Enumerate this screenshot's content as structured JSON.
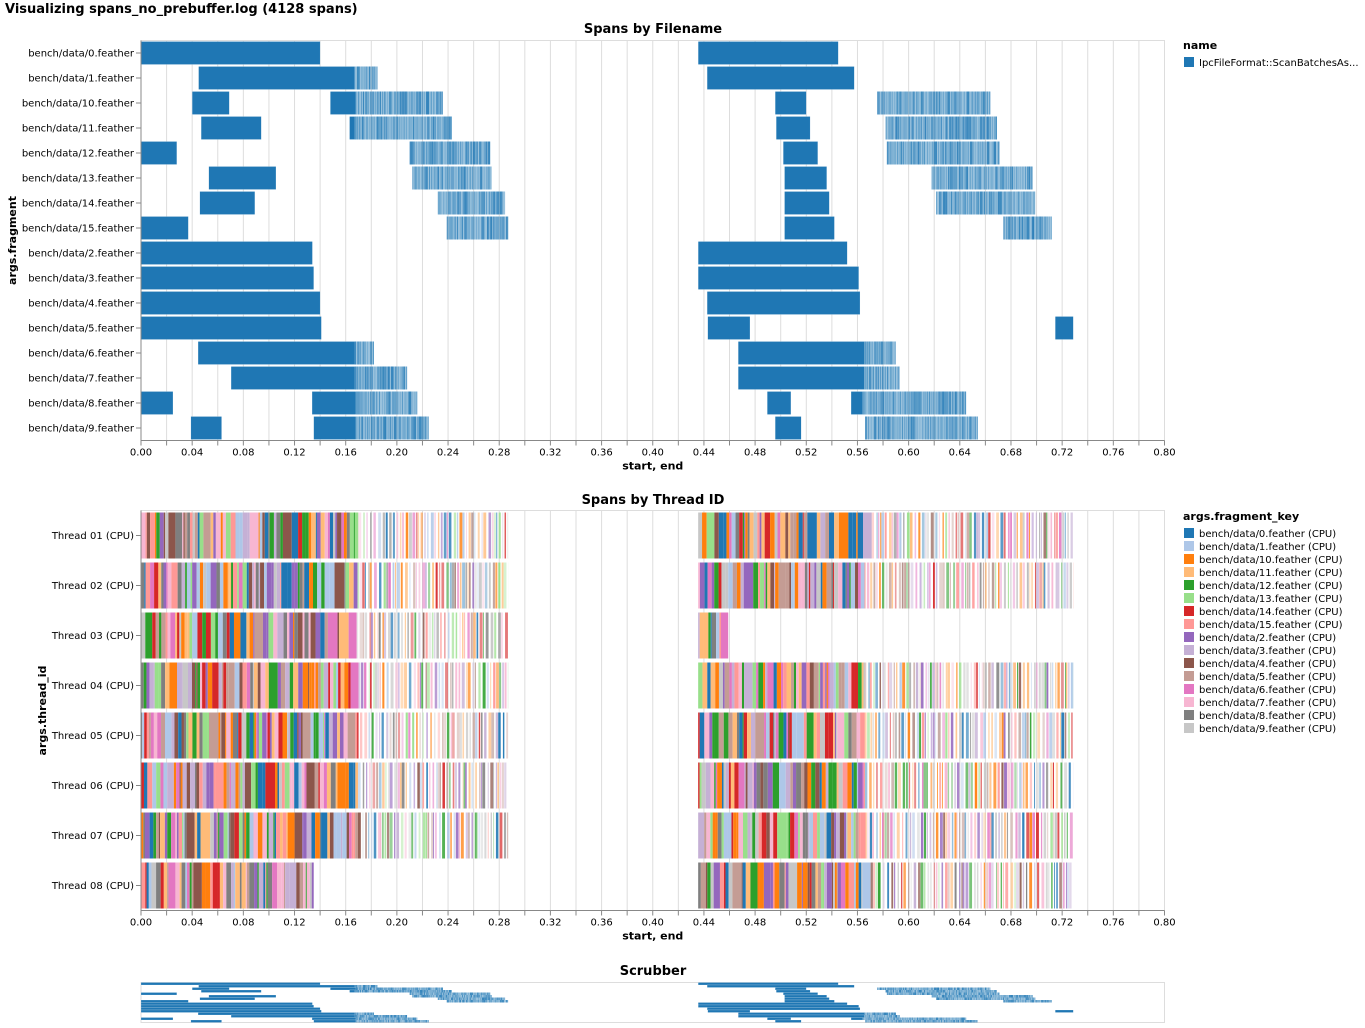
{
  "page": {
    "title": "Visualizing spans_no_prebuffer.log (4128 spans)"
  },
  "chart_data": [
    {
      "type": "gantt",
      "title": "Spans by Filename",
      "xlabel": "start, end",
      "ylabel": "args.fragment",
      "xlim": [
        0,
        0.8
      ],
      "xticks": [
        "0.00",
        "0.04",
        "0.08",
        "0.12",
        "0.16",
        "0.20",
        "0.24",
        "0.28",
        "0.32",
        "0.36",
        "0.40",
        "0.44",
        "0.48",
        "0.52",
        "0.56",
        "0.60",
        "0.64",
        "0.68",
        "0.72",
        "0.76",
        "0.80"
      ],
      "grid": true,
      "legend": {
        "title": "name",
        "position": "right",
        "entries": [
          {
            "label": "IpcFileFormat::ScanBatchesAs...",
            "color": "#1f77b4"
          }
        ]
      },
      "rows": [
        {
          "label": "bench/data/0.feather",
          "segments": [
            [
              0,
              0.14,
              "solid"
            ],
            [
              0.4355,
              0.545,
              "solid"
            ]
          ]
        },
        {
          "label": "bench/data/1.feather",
          "segments": [
            [
              0.045,
              0.167,
              "solid"
            ],
            [
              0.167,
              0.185,
              "stripe"
            ],
            [
              0.4425,
              0.5575,
              "solid"
            ]
          ]
        },
        {
          "label": "bench/data/10.feather",
          "segments": [
            [
              0.04,
              0.069,
              "solid"
            ],
            [
              0.148,
              0.168,
              "solid"
            ],
            [
              0.168,
              0.236,
              "stripe"
            ],
            [
              0.4957,
              0.52,
              "solid"
            ],
            [
              0.5755,
              0.664,
              "stripe"
            ]
          ]
        },
        {
          "label": "bench/data/11.feather",
          "segments": [
            [
              0.047,
              0.094,
              "solid"
            ],
            [
              0.163,
              0.167,
              "solid"
            ],
            [
              0.167,
              0.243,
              "stripe"
            ],
            [
              0.4965,
              0.523,
              "solid"
            ],
            [
              0.582,
              0.669,
              "stripe"
            ]
          ]
        },
        {
          "label": "bench/data/12.feather",
          "segments": [
            [
              0,
              0.028,
              "solid"
            ],
            [
              0.21,
              0.273,
              "stripe"
            ],
            [
              0.502,
              0.529,
              "solid"
            ],
            [
              0.583,
              0.671,
              "stripe"
            ]
          ]
        },
        {
          "label": "bench/data/13.feather",
          "segments": [
            [
              0.053,
              0.1055,
              "solid"
            ],
            [
              0.212,
              0.274,
              "stripe"
            ],
            [
              0.503,
              0.536,
              "solid"
            ],
            [
              0.618,
              0.697,
              "stripe"
            ]
          ]
        },
        {
          "label": "bench/data/14.feather",
          "segments": [
            [
              0.046,
              0.089,
              "solid"
            ],
            [
              0.232,
              0.2846,
              "stripe"
            ],
            [
              0.503,
              0.538,
              "solid"
            ],
            [
              0.6216,
              0.699,
              "stripe"
            ]
          ]
        },
        {
          "label": "bench/data/15.feather",
          "segments": [
            [
              0,
              0.037,
              "solid"
            ],
            [
              0.239,
              0.287,
              "stripe"
            ],
            [
              0.503,
              0.542,
              "solid"
            ],
            [
              0.674,
              0.712,
              "stripe"
            ]
          ]
        },
        {
          "label": "bench/data/2.feather",
          "segments": [
            [
              0,
              0.134,
              "solid"
            ],
            [
              0.4355,
              0.552,
              "solid"
            ]
          ]
        },
        {
          "label": "bench/data/3.feather",
          "segments": [
            [
              0,
              0.135,
              "solid"
            ],
            [
              0.4355,
              0.561,
              "solid"
            ]
          ]
        },
        {
          "label": "bench/data/4.feather",
          "segments": [
            [
              0,
              0.14,
              "solid"
            ],
            [
              0.4425,
              0.562,
              "solid"
            ]
          ]
        },
        {
          "label": "bench/data/5.feather",
          "segments": [
            [
              0,
              0.141,
              "solid"
            ],
            [
              0.443,
              0.476,
              "solid"
            ],
            [
              0.7146,
              0.7287,
              "solid"
            ]
          ]
        },
        {
          "label": "bench/data/6.feather",
          "segments": [
            [
              0.0446,
              0.167,
              "solid"
            ],
            [
              0.167,
              0.182,
              "stripe"
            ],
            [
              0.4668,
              0.5653,
              "solid"
            ],
            [
              0.5653,
              0.59,
              "stripe"
            ]
          ]
        },
        {
          "label": "bench/data/7.feather",
          "segments": [
            [
              0.0704,
              0.167,
              "solid"
            ],
            [
              0.167,
              0.208,
              "stripe"
            ],
            [
              0.4668,
              0.5653,
              "solid"
            ],
            [
              0.5653,
              0.593,
              "stripe"
            ]
          ]
        },
        {
          "label": "bench/data/8.feather",
          "segments": [
            [
              0,
              0.025,
              "solid"
            ],
            [
              0.1337,
              0.168,
              "solid"
            ],
            [
              0.168,
              0.216,
              "stripe"
            ],
            [
              0.4895,
              0.508,
              "solid"
            ],
            [
              0.555,
              0.564,
              "solid"
            ],
            [
              0.564,
              0.645,
              "stripe"
            ]
          ]
        },
        {
          "label": "bench/data/9.feather",
          "segments": [
            [
              0.039,
              0.063,
              "solid"
            ],
            [
              0.135,
              0.168,
              "solid"
            ],
            [
              0.168,
              0.225,
              "stripe"
            ],
            [
              0.4957,
              0.516,
              "solid"
            ],
            [
              0.566,
              0.654,
              "stripe"
            ]
          ]
        }
      ]
    },
    {
      "type": "gantt",
      "title": "Spans by Thread ID",
      "xlabel": "start, end",
      "ylabel": "args.thread_id",
      "xlim": [
        0,
        0.8
      ],
      "grid": true,
      "legend": {
        "title": "args.fragment_key",
        "position": "right",
        "entries": [
          {
            "label": "bench/data/0.feather (CPU)",
            "color": "#1f77b4"
          },
          {
            "label": "bench/data/1.feather (CPU)",
            "color": "#aec7e8"
          },
          {
            "label": "bench/data/10.feather (CPU)",
            "color": "#ff7f0e"
          },
          {
            "label": "bench/data/11.feather (CPU)",
            "color": "#ffbb78"
          },
          {
            "label": "bench/data/12.feather (CPU)",
            "color": "#2ca02c"
          },
          {
            "label": "bench/data/13.feather (CPU)",
            "color": "#98df8a"
          },
          {
            "label": "bench/data/14.feather (CPU)",
            "color": "#d62728"
          },
          {
            "label": "bench/data/15.feather (CPU)",
            "color": "#ff9896"
          },
          {
            "label": "bench/data/2.feather (CPU)",
            "color": "#9467bd"
          },
          {
            "label": "bench/data/3.feather (CPU)",
            "color": "#c5b0d5"
          },
          {
            "label": "bench/data/4.feather (CPU)",
            "color": "#8c564b"
          },
          {
            "label": "bench/data/5.feather (CPU)",
            "color": "#c49c94"
          },
          {
            "label": "bench/data/6.feather (CPU)",
            "color": "#e377c2"
          },
          {
            "label": "bench/data/7.feather (CPU)",
            "color": "#f7b6d2"
          },
          {
            "label": "bench/data/8.feather (CPU)",
            "color": "#7f7f7f"
          },
          {
            "label": "bench/data/9.feather (CPU)",
            "color": "#c7c7c7"
          }
        ]
      },
      "rows": [
        {
          "label": "Thread 01 (CPU)",
          "blocks": [
            [
              0,
              0.287
            ],
            [
              0.4355,
              0.7287
            ]
          ]
        },
        {
          "label": "Thread 02 (CPU)",
          "blocks": [
            [
              0,
              0.287
            ],
            [
              0.4355,
              0.7287
            ]
          ]
        },
        {
          "label": "Thread 03 (CPU)",
          "blocks": [
            [
              0,
              0.287
            ],
            [
              0.4355,
              0.459
            ]
          ]
        },
        {
          "label": "Thread 04 (CPU)",
          "blocks": [
            [
              0,
              0.287
            ],
            [
              0.4355,
              0.7287
            ]
          ]
        },
        {
          "label": "Thread 05 (CPU)",
          "blocks": [
            [
              0,
              0.287
            ],
            [
              0.4355,
              0.7287
            ]
          ]
        },
        {
          "label": "Thread 06 (CPU)",
          "blocks": [
            [
              0,
              0.286
            ],
            [
              0.4355,
              0.7287
            ]
          ]
        },
        {
          "label": "Thread 07 (CPU)",
          "blocks": [
            [
              0,
              0.287
            ],
            [
              0.4355,
              0.7287
            ]
          ]
        },
        {
          "label": "Thread 08 (CPU)",
          "blocks": [
            [
              0,
              0.135
            ],
            [
              0.4355,
              0.7287
            ]
          ]
        }
      ]
    },
    {
      "type": "gantt",
      "title": "Scrubber",
      "xlim": [
        0,
        0.8
      ],
      "source": "Spans by Filename"
    }
  ]
}
